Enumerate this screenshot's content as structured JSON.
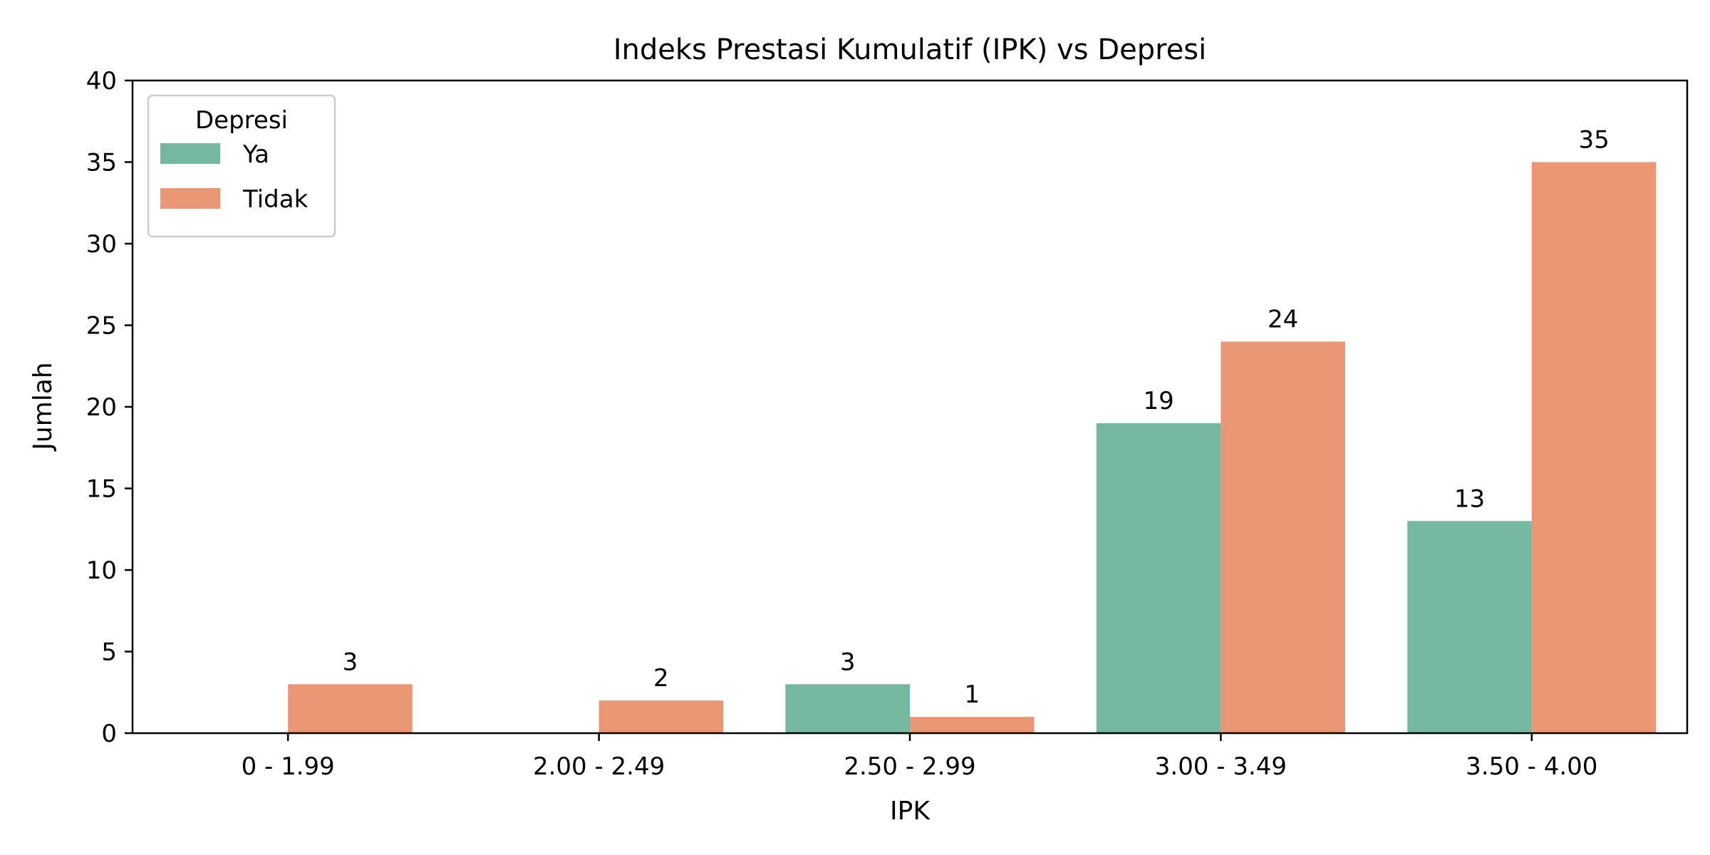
{
  "chart_data": {
    "type": "bar",
    "title": "Indeks Prestasi Kumulatif (IPK) vs Depresi",
    "xlabel": "IPK",
    "ylabel": "Jumlah",
    "categories": [
      "0 - 1.99",
      "2.00 - 2.49",
      "2.50 - 2.99",
      "3.00 - 3.49",
      "3.50 - 4.00"
    ],
    "series": [
      {
        "name": "Ya",
        "color": "#76b7a0",
        "values": [
          0,
          0,
          3,
          19,
          13
        ]
      },
      {
        "name": "Tidak",
        "color": "#e99774",
        "values": [
          3,
          2,
          1,
          24,
          35
        ]
      }
    ],
    "ylim": [
      0,
      40
    ],
    "yticks": [
      0,
      5,
      10,
      15,
      20,
      25,
      30,
      35,
      40
    ],
    "legend": {
      "title": "Depresi",
      "position": "top-left"
    },
    "grid": false
  }
}
